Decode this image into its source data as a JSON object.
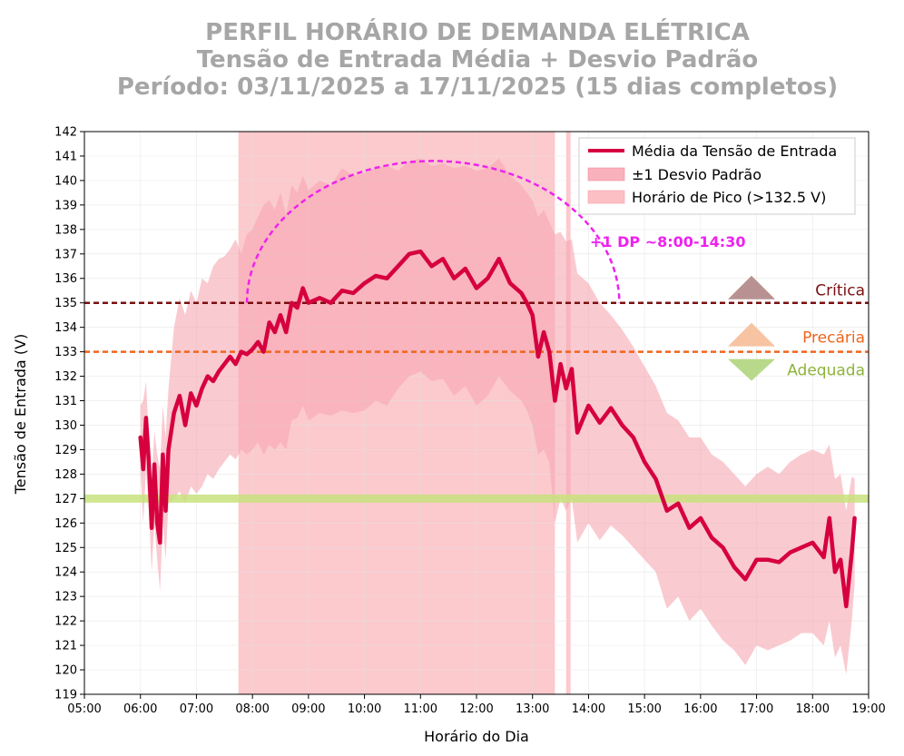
{
  "chart_data": {
    "type": "line",
    "title": [
      "PERFIL HORÁRIO DE DEMANDA ELÉTRICA",
      "Tensão de Entrada Média + Desvio Padrão",
      "Período: 03/11/2025 a 17/11/2025 (15 dias completos)"
    ],
    "xlabel": "Horário do Dia",
    "ylabel": "Tensão de Entrada (V)",
    "xlim": [
      5,
      19
    ],
    "ylim": [
      119,
      142
    ],
    "xticks": [
      "05:00",
      "06:00",
      "07:00",
      "08:00",
      "09:00",
      "10:00",
      "11:00",
      "12:00",
      "13:00",
      "14:00",
      "15:00",
      "16:00",
      "17:00",
      "18:00",
      "19:00"
    ],
    "yticks": [
      119,
      120,
      121,
      122,
      123,
      124,
      125,
      126,
      127,
      128,
      129,
      130,
      131,
      132,
      133,
      134,
      135,
      136,
      137,
      138,
      139,
      140,
      141,
      142
    ],
    "grid": true,
    "legend_position": "top-right",
    "series": [
      {
        "name": "Média da Tensão de Entrada",
        "color": "#d6003f",
        "x": [
          6.0,
          6.05,
          6.1,
          6.15,
          6.2,
          6.25,
          6.3,
          6.35,
          6.4,
          6.45,
          6.5,
          6.6,
          6.7,
          6.8,
          6.9,
          7.0,
          7.1,
          7.2,
          7.3,
          7.4,
          7.5,
          7.6,
          7.7,
          7.8,
          7.9,
          8.0,
          8.1,
          8.2,
          8.3,
          8.4,
          8.5,
          8.6,
          8.7,
          8.8,
          8.9,
          9.0,
          9.2,
          9.4,
          9.6,
          9.8,
          10.0,
          10.2,
          10.4,
          10.6,
          10.8,
          11.0,
          11.2,
          11.4,
          11.6,
          11.8,
          12.0,
          12.2,
          12.4,
          12.6,
          12.8,
          12.9,
          13.0,
          13.1,
          13.2,
          13.3,
          13.4,
          13.5,
          13.6,
          13.7,
          13.8,
          14.0,
          14.2,
          14.4,
          14.6,
          14.8,
          15.0,
          15.2,
          15.4,
          15.6,
          15.8,
          16.0,
          16.2,
          16.4,
          16.6,
          16.8,
          17.0,
          17.2,
          17.4,
          17.6,
          17.8,
          18.0,
          18.2,
          18.3,
          18.4,
          18.5,
          18.6,
          18.7,
          18.75
        ],
        "values": [
          129.5,
          128.2,
          130.3,
          128.5,
          125.8,
          128.4,
          126.0,
          125.2,
          128.8,
          126.5,
          129.0,
          130.5,
          131.2,
          130.0,
          131.3,
          130.8,
          131.5,
          132.0,
          131.8,
          132.2,
          132.5,
          132.8,
          132.5,
          133.0,
          132.9,
          133.1,
          133.4,
          133.0,
          134.2,
          133.8,
          134.5,
          133.8,
          135.0,
          134.8,
          135.6,
          135.0,
          135.2,
          135.0,
          135.5,
          135.4,
          135.8,
          136.1,
          136.0,
          136.5,
          137.0,
          137.1,
          136.5,
          136.8,
          136.0,
          136.4,
          135.6,
          136.0,
          136.8,
          135.8,
          135.4,
          135.0,
          134.5,
          132.8,
          133.8,
          133.0,
          131.0,
          132.5,
          131.5,
          132.3,
          129.7,
          130.8,
          130.1,
          130.7,
          130.0,
          129.5,
          128.5,
          127.8,
          126.5,
          126.8,
          125.8,
          126.2,
          125.4,
          125.0,
          124.2,
          123.7,
          124.5,
          124.5,
          124.4,
          124.8,
          125.0,
          125.2,
          124.6,
          126.2,
          124.0,
          124.5,
          122.6,
          124.8,
          126.2
        ]
      }
    ],
    "band_upper": [
      130.8,
      131.0,
      131.8,
      129.5,
      127.5,
      129.8,
      128.8,
      128.2,
      130.8,
      129.5,
      131.5,
      134.0,
      135.2,
      134.5,
      135.5,
      135.0,
      136.0,
      135.8,
      136.5,
      136.8,
      136.9,
      137.2,
      137.6,
      137.0,
      137.8,
      138.0,
      138.5,
      139.0,
      139.2,
      138.8,
      139.5,
      138.6,
      139.8,
      139.5,
      140.2,
      139.6,
      140.0,
      139.8,
      140.5,
      140.2,
      140.3,
      140.5,
      140.6,
      140.4,
      140.8,
      140.9,
      140.6,
      140.7,
      140.5,
      140.6,
      140.4,
      140.5,
      140.9,
      140.2,
      139.8,
      139.5,
      139.2,
      138.5,
      138.8,
      138.3,
      137.8,
      137.9,
      137.5,
      137.6,
      136.2,
      135.8,
      135.0,
      134.5,
      133.9,
      133.2,
      132.4,
      131.6,
      130.5,
      130.2,
      129.5,
      129.5,
      128.8,
      128.5,
      128.0,
      127.5,
      128.0,
      128.3,
      128.0,
      128.5,
      128.8,
      129.0,
      128.8,
      129.2,
      127.8,
      128.0,
      126.5,
      127.9,
      127.8
    ],
    "band_lower": [
      128.2,
      126.0,
      128.2,
      126.5,
      124.0,
      126.0,
      124.5,
      123.2,
      126.0,
      124.5,
      126.8,
      127.0,
      127.3,
      126.8,
      127.5,
      127.2,
      127.5,
      128.0,
      127.8,
      128.2,
      128.5,
      128.8,
      128.6,
      129.0,
      128.8,
      129.0,
      129.3,
      128.8,
      129.2,
      129.0,
      129.3,
      129.0,
      130.2,
      130.3,
      130.8,
      130.2,
      130.5,
      130.4,
      130.6,
      130.5,
      130.6,
      131.0,
      130.8,
      131.5,
      132.0,
      132.2,
      131.8,
      131.9,
      131.2,
      131.6,
      130.8,
      131.2,
      132.0,
      131.4,
      131.0,
      130.6,
      130.0,
      128.8,
      129.0,
      128.5,
      126.0,
      127.0,
      126.5,
      127.0,
      125.2,
      126.0,
      125.3,
      125.9,
      125.5,
      125.0,
      124.5,
      124.0,
      122.5,
      123.0,
      122.0,
      122.5,
      121.8,
      121.2,
      120.8,
      120.2,
      121.0,
      120.8,
      121.0,
      121.2,
      121.5,
      121.5,
      121.0,
      122.0,
      120.5,
      121.0,
      119.8,
      122.0,
      123.5
    ],
    "band_name": "±1 Desvio Padrão",
    "peak_name": "Horário de Pico (>132.5 V)",
    "peak_spans": [
      [
        7.75,
        13.4
      ],
      [
        13.6,
        13.68
      ]
    ],
    "reference_lines": [
      {
        "name": "Crítica",
        "value": 135,
        "color": "#7a0f0f"
      },
      {
        "name": "Precária",
        "value": 133,
        "color": "#f0651d"
      },
      {
        "name": "Adequada",
        "value": 127,
        "color": "#c8e27c"
      }
    ],
    "zone_labels": [
      {
        "text": "Crítica",
        "color": "#7a0f0f",
        "arrow": "up",
        "arrow_color": "#b89292"
      },
      {
        "text": "Precária",
        "color": "#f0651d",
        "arrow": "up",
        "arrow_color": "#f7c3a2"
      },
      {
        "text": "Adequada",
        "color": "#8db33a",
        "arrow": "down",
        "arrow_color": "#b9d98a"
      }
    ],
    "annotation": {
      "text": "+1 DP ~8:00-14:30",
      "color": "#ee22ee",
      "arc_peak": 140.8,
      "arc_start": 7.9,
      "arc_end": 14.55
    }
  }
}
